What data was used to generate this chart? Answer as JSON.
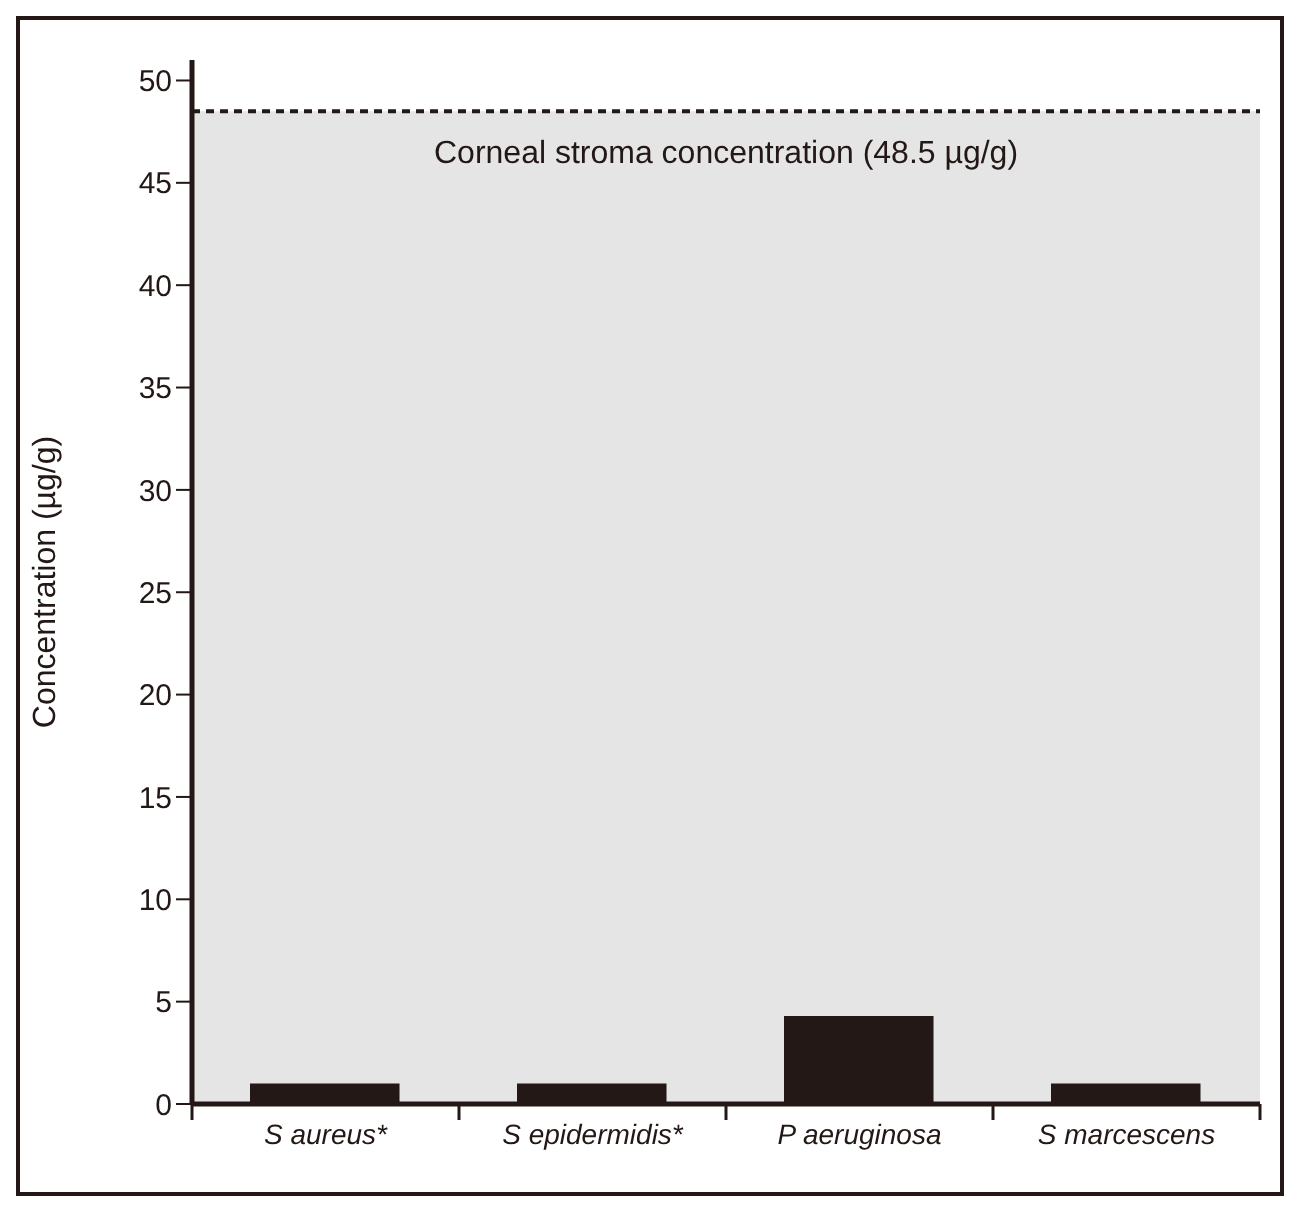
{
  "chart_data": {
    "type": "bar",
    "ylabel": "Concentration (µg/g)",
    "categories": [
      "S aureus*",
      "S epidermidis*",
      "P aeruginosa",
      "S marcescens"
    ],
    "values": [
      1,
      1,
      4.3,
      1
    ],
    "color": "#231815",
    "ylim": [
      0,
      51
    ],
    "yticks": [
      0,
      5,
      10,
      15,
      20,
      25,
      30,
      35,
      40,
      45,
      50
    ],
    "grid": false,
    "legend": false,
    "ref_lines": [
      {
        "axis": "y",
        "value": 48.5,
        "label": "Corneal stroma concentration (48.5 µg/g)",
        "color": "#231815",
        "line_style": "dashed"
      }
    ],
    "bands": [
      {
        "axis": "y",
        "from": 0,
        "to": 48.5,
        "color": "#e5e5e5"
      }
    ]
  }
}
